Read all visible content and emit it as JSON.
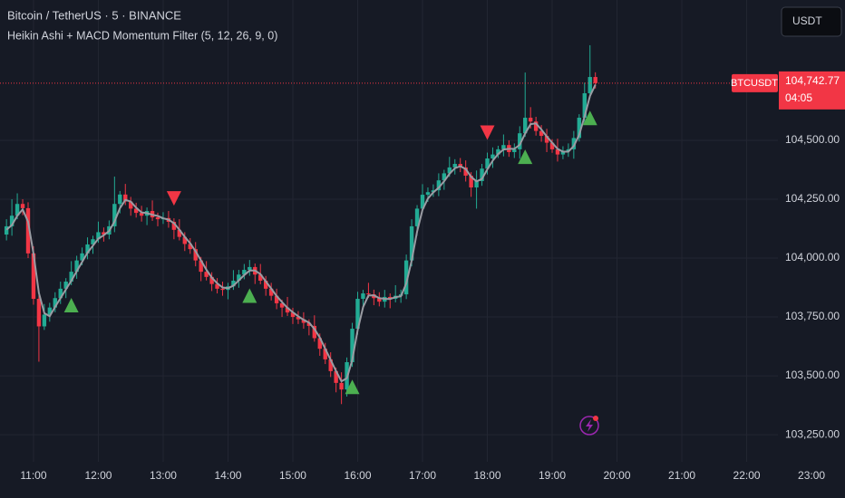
{
  "chart_data": {
    "type": "candlestick",
    "title": "Bitcoin / TetherUS · 5 · BINANCE",
    "subtitle": "Heikin Ashi + MACD Momentum Filter (5, 12, 26, 9, 0)",
    "currency": "USDT",
    "symbol": "BTCUSDT",
    "last_price": {
      "value": 104742.77,
      "label": "104,742.77"
    },
    "countdown": "04:05",
    "up_color": "#22ab94",
    "down_color": "#f23645",
    "ma_color": "#9a9ca3",
    "buy_color": "#4caf50",
    "sell_color": "#f23645",
    "x": [
      635,
      640,
      645,
      650,
      655,
      660,
      665,
      670,
      675,
      680,
      685,
      690,
      695,
      700,
      705,
      710,
      715,
      720,
      725,
      730,
      735,
      740,
      745,
      750,
      755,
      760,
      765,
      770,
      775,
      780,
      785,
      790,
      795,
      800,
      805,
      810,
      815,
      820,
      825,
      830,
      835,
      840,
      845,
      850,
      855,
      860,
      865,
      870,
      875,
      880,
      885,
      890,
      895,
      900,
      905,
      910,
      915,
      920,
      925,
      930,
      935,
      940,
      945,
      950,
      955,
      960,
      965,
      970,
      975,
      980,
      985,
      990,
      995,
      1000,
      1005,
      1010,
      1015,
      1020,
      1025,
      1030,
      1035,
      1040,
      1045,
      1050,
      1055,
      1060,
      1065,
      1070,
      1075,
      1080,
      1085,
      1090,
      1095,
      1100,
      1105,
      1110,
      1115,
      1120,
      1125,
      1130,
      1135,
      1140,
      1145,
      1150,
      1155,
      1160,
      1165,
      1170,
      1175,
      1180
    ],
    "open": [
      104100,
      104135,
      104180,
      104230,
      104212,
      104020,
      103827,
      103710,
      103760,
      103790,
      103830,
      103870,
      103900,
      103942,
      103990,
      104020,
      104058,
      104080,
      104110,
      104100,
      104135,
      104230,
      104270,
      104240,
      104210,
      104192,
      104180,
      104200,
      104173,
      104165,
      104170,
      104154,
      104120,
      104090,
      104060,
      104038,
      103990,
      103942,
      103920,
      103890,
      103870,
      103865,
      103880,
      103904,
      103930,
      103950,
      103962,
      103930,
      103904,
      103870,
      103840,
      103808,
      103790,
      103769,
      103750,
      103740,
      103725,
      103712,
      103660,
      103615,
      103570,
      103520,
      103470,
      103442,
      103558,
      103700,
      103827,
      103850,
      103846,
      103830,
      103815,
      103835,
      103827,
      103840,
      103846,
      103990,
      104135,
      104210,
      104269,
      104280,
      104288,
      104330,
      104360,
      104385,
      104400,
      104385,
      104350,
      104300,
      104327,
      104380,
      104423,
      104440,
      104462,
      104480,
      104450,
      104462,
      104530,
      104596,
      104580,
      104540,
      104519,
      104490,
      104462,
      104440,
      104455,
      104462,
      104510,
      104596,
      104700,
      104769
    ],
    "high": [
      104165,
      104250,
      104275,
      104250,
      104237,
      104050,
      103842,
      103805,
      103810,
      103855,
      103900,
      103915,
      103987,
      104010,
      104045,
      104088,
      104095,
      104155,
      104130,
      104160,
      104346,
      104285,
      104315,
      104260,
      104235,
      104222,
      104215,
      104245,
      104193,
      104195,
      104200,
      104169,
      104165,
      104110,
      104085,
      104068,
      104005,
      103987,
      103940,
      103915,
      103900,
      103895,
      103949,
      103950,
      103975,
      103992,
      103977,
      103975,
      103924,
      103895,
      103870,
      103823,
      103835,
      103789,
      103775,
      103770,
      103740,
      103757,
      103680,
      103640,
      103600,
      103535,
      103515,
      103578,
      103725,
      103857,
      103865,
      103895,
      103866,
      103855,
      103865,
      103850,
      103885,
      103866,
      104015,
      104165,
      104225,
      104314,
      104300,
      104313,
      104360,
      104375,
      104430,
      104420,
      104425,
      104415,
      104365,
      104372,
      104400,
      104448,
      104470,
      104477,
      104525,
      104500,
      104487,
      104560,
      104788,
      104641,
      104600,
      104565,
      104549,
      104505,
      104507,
      104475,
      104487,
      104540,
      104611,
      104745,
      104904,
      104789
    ],
    "low": [
      104075,
      104095,
      104165,
      104182,
      104000,
      103802,
      103560,
      103695,
      103730,
      103770,
      103805,
      103830,
      103885,
      103912,
      103970,
      103995,
      104018,
      104065,
      104070,
      104080,
      104110,
      104190,
      104225,
      104180,
      104172,
      104155,
      104140,
      104158,
      104135,
      104145,
      104129,
      104080,
      104075,
      104030,
      104018,
      103965,
      103902,
      103905,
      103860,
      103850,
      103840,
      103825,
      103865,
      103874,
      103910,
      103925,
      103890,
      103889,
      103840,
      103820,
      103783,
      103750,
      103754,
      103720,
      103720,
      103700,
      103672,
      103645,
      103585,
      103550,
      103495,
      103430,
      103380,
      103412,
      103538,
      103675,
      103787,
      103831,
      103800,
      103795,
      103790,
      103787,
      103812,
      103810,
      103826,
      103965,
      104095,
      104195,
      104239,
      104260,
      104263,
      104290,
      104345,
      104355,
      104365,
      104325,
      104260,
      104210,
      104307,
      104355,
      104383,
      104425,
      104432,
      104430,
      104425,
      104422,
      104515,
      104550,
      104520,
      104494,
      104450,
      104447,
      104410,
      104420,
      104430,
      104422,
      104495,
      104566,
      104680,
      104720
    ],
    "close": [
      104135,
      104180,
      104230,
      104212,
      104020,
      103827,
      103710,
      103760,
      103790,
      103830,
      103870,
      103900,
      103942,
      103990,
      104020,
      104058,
      104080,
      104110,
      104100,
      104135,
      104230,
      104270,
      104240,
      104210,
      104192,
      104180,
      104200,
      104173,
      104165,
      104170,
      104154,
      104120,
      104090,
      104060,
      104038,
      103990,
      103942,
      103920,
      103890,
      103870,
      103865,
      103880,
      103904,
      103930,
      103950,
      103962,
      103930,
      103904,
      103870,
      103840,
      103808,
      103790,
      103769,
      103750,
      103740,
      103725,
      103712,
      103660,
      103615,
      103570,
      103520,
      103470,
      103442,
      103558,
      103700,
      103827,
      103850,
      103846,
      103830,
      103815,
      103835,
      103827,
      103840,
      103846,
      103990,
      104135,
      104210,
      104269,
      104280,
      104288,
      104330,
      104360,
      104385,
      104400,
      104385,
      104350,
      104300,
      104327,
      104380,
      104423,
      104440,
      104462,
      104480,
      104450,
      104462,
      104530,
      104596,
      104580,
      104540,
      104519,
      104490,
      104462,
      104440,
      104455,
      104462,
      104510,
      104596,
      104700,
      104769,
      104742.77
    ],
    "ma": [
      104120,
      104140,
      104180,
      104207,
      104154,
      104020,
      103852,
      103766,
      103753,
      103793,
      103830,
      103867,
      103904,
      103944,
      103984,
      104023,
      104053,
      104083,
      104097,
      104115,
      104155,
      104212,
      104247,
      104240,
      104214,
      104194,
      104191,
      104184,
      104179,
      104169,
      104163,
      104148,
      104121,
      104090,
      104063,
      104029,
      103990,
      103951,
      103917,
      103893,
      103875,
      103872,
      103883,
      103905,
      103928,
      103947,
      103947,
      103932,
      103901,
      103871,
      103839,
      103813,
      103789,
      103770,
      103753,
      103738,
      103726,
      103699,
      103662,
      103615,
      103568,
      103520,
      103477,
      103490,
      103567,
      103695,
      103792,
      103841,
      103842,
      103830,
      103827,
      103826,
      103834,
      103838,
      103892,
      103990,
      104112,
      104205,
      104253,
      104279,
      104299,
      104326,
      104358,
      104382,
      104390,
      104378,
      104345,
      104326,
      104336,
      104377,
      104414,
      104442,
      104461,
      104464,
      104464,
      104481,
      104529,
      104569,
      104572,
      104546,
      104516,
      104490,
      104464,
      104452,
      104452,
      104476,
      104523,
      104602,
      104688,
      104737
    ],
    "buy_signals": [
      12,
      45,
      64,
      96,
      108
    ],
    "sell_signals": [
      31,
      89
    ],
    "xlim": [
      629,
      1411
    ],
    "ylim": [
      103135,
      105096
    ],
    "xticks": [
      {
        "value": 660,
        "label": "11:00"
      },
      {
        "value": 720,
        "label": "12:00"
      },
      {
        "value": 780,
        "label": "13:00"
      },
      {
        "value": 840,
        "label": "14:00"
      },
      {
        "value": 900,
        "label": "15:00"
      },
      {
        "value": 960,
        "label": "16:00"
      },
      {
        "value": 1020,
        "label": "17:00"
      },
      {
        "value": 1080,
        "label": "18:00"
      },
      {
        "value": 1140,
        "label": "19:00"
      },
      {
        "value": 1200,
        "label": "20:00"
      },
      {
        "value": 1260,
        "label": "21:00"
      },
      {
        "value": 1320,
        "label": "22:00"
      },
      {
        "value": 1380,
        "label": "23:00"
      }
    ],
    "yticks": [
      {
        "value": 103250,
        "label": "103,250.00"
      },
      {
        "value": 103500,
        "label": "103,500.00"
      },
      {
        "value": 103750,
        "label": "103,750.00"
      },
      {
        "value": 104000,
        "label": "104,000.00"
      },
      {
        "value": 104250,
        "label": "104,250.00"
      },
      {
        "value": 104500,
        "label": "104,500.00"
      }
    ],
    "grid": true
  }
}
